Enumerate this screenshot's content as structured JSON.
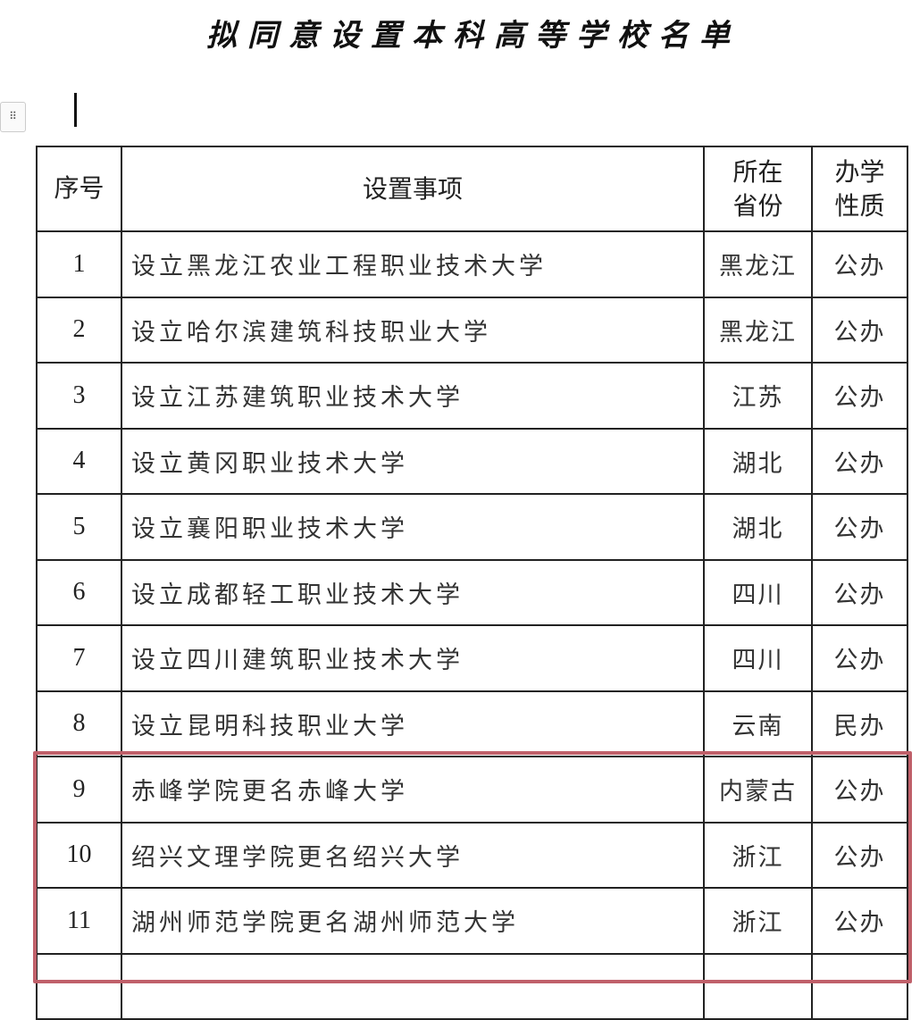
{
  "title": "拟同意设置本科高等学校名单",
  "handle_icon": "drag-handle-icon",
  "highlight_color": "#c0606a",
  "table": {
    "headers": [
      "序号",
      "设置事项",
      "所在省份",
      "办学性质"
    ],
    "rows": [
      {
        "no": "1",
        "item": "设立黑龙江农业工程职业技术大学",
        "province": "黑龙江",
        "type": "公办"
      },
      {
        "no": "2",
        "item": "设立哈尔滨建筑科技职业大学",
        "province": "黑龙江",
        "type": "公办"
      },
      {
        "no": "3",
        "item": "设立江苏建筑职业技术大学",
        "province": "江苏",
        "type": "公办"
      },
      {
        "no": "4",
        "item": "设立黄冈职业技术大学",
        "province": "湖北",
        "type": "公办"
      },
      {
        "no": "5",
        "item": "设立襄阳职业技术大学",
        "province": "湖北",
        "type": "公办"
      },
      {
        "no": "6",
        "item": "设立成都轻工职业技术大学",
        "province": "四川",
        "type": "公办"
      },
      {
        "no": "7",
        "item": "设立四川建筑职业技术大学",
        "province": "四川",
        "type": "公办"
      },
      {
        "no": "8",
        "item": "设立昆明科技职业大学",
        "province": "云南",
        "type": "民办"
      },
      {
        "no": "9",
        "item": "赤峰学院更名赤峰大学",
        "province": "内蒙古",
        "type": "公办"
      },
      {
        "no": "10",
        "item": "绍兴文理学院更名绍兴大学",
        "province": "浙江",
        "type": "公办"
      },
      {
        "no": "11",
        "item": "湖州师范学院更名湖州师范大学",
        "province": "浙江",
        "type": "公办"
      },
      {
        "no": "",
        "item": "",
        "province": "",
        "type": ""
      }
    ]
  }
}
